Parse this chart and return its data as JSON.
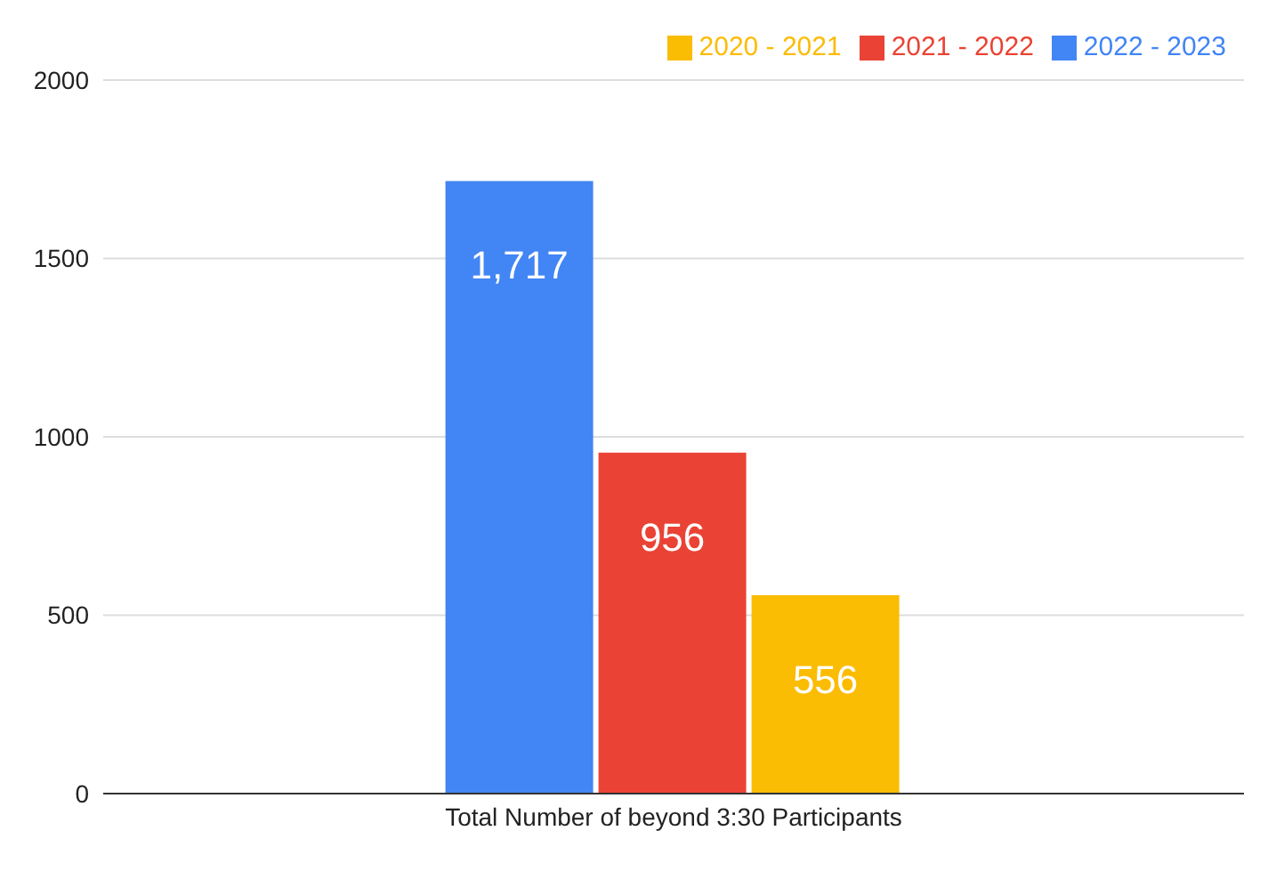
{
  "chart_data": {
    "type": "bar",
    "categories": [
      "Total Number of beyond 3:30 Participants"
    ],
    "series": [
      {
        "name": "2022 - 2023",
        "color": "#4285f4",
        "values": [
          1717
        ],
        "value_labels": [
          "1,717"
        ]
      },
      {
        "name": "2021 - 2022",
        "color": "#ea4335",
        "values": [
          956
        ],
        "value_labels": [
          "956"
        ]
      },
      {
        "name": "2020 - 2021",
        "color": "#fbbc04",
        "values": [
          556
        ],
        "value_labels": [
          "556"
        ]
      }
    ],
    "ylim": [
      0,
      2000
    ],
    "yticks": [
      0,
      500,
      1000,
      1500,
      2000
    ],
    "grid": "y",
    "legend": "top right"
  }
}
